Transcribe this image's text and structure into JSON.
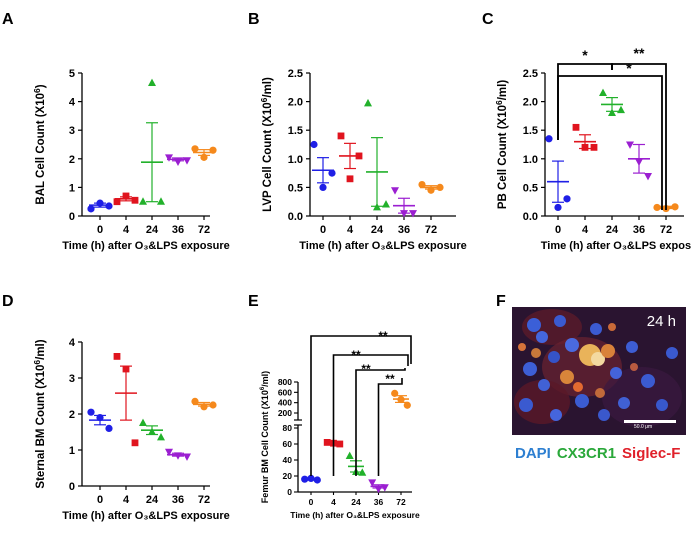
{
  "colors": {
    "0": "#1f1fe6",
    "4": "#e0141e",
    "24": "#22b12b",
    "36": "#9b1fd1",
    "72": "#f5891c",
    "dapi": "#2d7fd1",
    "cx3cr1": "#2aa83a",
    "siglecf": "#e0202a"
  },
  "categories": [
    "0",
    "4",
    "24",
    "36",
    "72"
  ],
  "panels": {
    "A": {
      "letter": "A",
      "ylabel": "BAL Cell Count (X10",
      "ylabel_sup": "6",
      "ylabel_end": ")",
      "xlabel": "Time (h) after O₃&LPS exposure",
      "ticks": [
        "0",
        "1",
        "2",
        "3",
        "4",
        "5"
      ]
    },
    "B": {
      "letter": "B",
      "ylabel": "LVP Cell Count (X10",
      "ylabel_sup": "6",
      "ylabel_end": "/ml)",
      "xlabel": "Time (h) after O₃&LPS exposure",
      "ticks": [
        "0.0",
        "0.5",
        "1.0",
        "1.5",
        "2.0",
        "2.5"
      ]
    },
    "C": {
      "letter": "C",
      "ylabel": "PB Cell Count (X10",
      "ylabel_sup": "6",
      "ylabel_end": "/ml)",
      "xlabel": "Time (h) after O₃&LPS exposure",
      "ticks": [
        "0.0",
        "0.5",
        "1.0",
        "1.5",
        "2.0",
        "2.5"
      ],
      "sig": [
        "*",
        "**",
        "*"
      ]
    },
    "D": {
      "letter": "D",
      "ylabel": "Sternal BM Count (X10",
      "ylabel_sup": "6",
      "ylabel_end": "/ml)",
      "xlabel": "Time (h) after O₃&LPS exposure",
      "ticks": [
        "0",
        "1",
        "2",
        "3",
        "4"
      ]
    },
    "E": {
      "letter": "E",
      "ylabel": "Femur BM Cell Count (X10",
      "ylabel_sup": "6",
      "ylabel_end": "/ml)",
      "xlabel": "Time (h) after O₃&LPS exposure",
      "ticks_low": [
        "0",
        "20",
        "40",
        "60",
        "80"
      ],
      "ticks_high": [
        "200",
        "400",
        "600",
        "800"
      ],
      "sig": [
        "**",
        "**",
        "**",
        "**"
      ]
    },
    "F": {
      "letter": "F",
      "time": "24 h",
      "scalebar": "50.0 μm",
      "legend": [
        "DAPI",
        "CX3CR1",
        "Siglec-F"
      ]
    }
  },
  "chart_data": [
    {
      "panel": "A",
      "type": "scatter",
      "title": "",
      "ylabel": "BAL Cell Count (X10^6)",
      "xlabel": "Time (h) after O3&LPS exposure",
      "ylim": [
        0,
        5
      ],
      "categories": [
        "0",
        "4",
        "24",
        "36",
        "72"
      ],
      "points": [
        [
          0.25,
          0.45,
          0.35
        ],
        [
          0.5,
          0.7,
          0.55
        ],
        [
          0.5,
          4.65,
          0.5
        ],
        [
          2.05,
          1.9,
          1.95
        ],
        [
          2.35,
          2.05,
          2.3
        ]
      ],
      "mean": [
        0.38,
        0.6,
        1.88,
        1.98,
        2.22
      ],
      "sem": [
        0.07,
        0.07,
        1.38,
        0.05,
        0.1
      ]
    },
    {
      "panel": "B",
      "type": "scatter",
      "title": "",
      "ylabel": "LVP Cell Count (X10^6/ml)",
      "xlabel": "Time (h) after O3&LPS exposure",
      "ylim": [
        0,
        2.5
      ],
      "categories": [
        "0",
        "4",
        "24",
        "36",
        "72"
      ],
      "points": [
        [
          1.25,
          0.5,
          0.75
        ],
        [
          1.4,
          0.65,
          1.05
        ],
        [
          1.97,
          0.15,
          0.2
        ],
        [
          0.45,
          0.05,
          0.05
        ],
        [
          0.55,
          0.45,
          0.5
        ]
      ],
      "mean": [
        0.8,
        1.05,
        0.77,
        0.18,
        0.5
      ],
      "sem": [
        0.22,
        0.22,
        0.6,
        0.13,
        0.03
      ]
    },
    {
      "panel": "C",
      "type": "scatter",
      "title": "",
      "ylabel": "PB Cell Count (X10^6/ml)",
      "xlabel": "Time (h) after O3&LPS exposure",
      "ylim": [
        0,
        2.5
      ],
      "categories": [
        "0",
        "4",
        "24",
        "36",
        "72"
      ],
      "points": [
        [
          1.35,
          0.15,
          0.3
        ],
        [
          1.55,
          1.2,
          1.2
        ],
        [
          2.15,
          1.8,
          1.85
        ],
        [
          1.25,
          0.95,
          0.7
        ],
        [
          0.15,
          0.13,
          0.16
        ]
      ],
      "mean": [
        0.6,
        1.3,
        1.95,
        1.0,
        0.15
      ],
      "sem": [
        0.36,
        0.12,
        0.12,
        0.25,
        0.02
      ],
      "annotations": [
        {
          "label": "*",
          "from": "0",
          "to": "24"
        },
        {
          "label": "**",
          "from": "24",
          "to": "72"
        },
        {
          "label": "*",
          "from": "0",
          "to": "72"
        }
      ]
    },
    {
      "panel": "D",
      "type": "scatter",
      "title": "",
      "ylabel": "Sternal BM Count (X10^6/ml)",
      "xlabel": "Time (h) after O3&LPS exposure",
      "ylim": [
        0,
        4
      ],
      "categories": [
        "0",
        "4",
        "24",
        "36",
        "72"
      ],
      "points": [
        [
          2.05,
          1.9,
          1.6
        ],
        [
          3.6,
          3.25,
          1.2
        ],
        [
          1.75,
          1.5,
          1.35
        ],
        [
          0.95,
          0.85,
          0.82
        ],
        [
          2.35,
          2.2,
          2.25
        ]
      ],
      "mean": [
        1.83,
        2.58,
        1.55,
        0.87,
        2.27
      ],
      "sem": [
        0.13,
        0.75,
        0.12,
        0.04,
        0.05
      ]
    },
    {
      "panel": "E",
      "type": "scatter",
      "title": "",
      "ylabel": "Femur BM Cell Count (X10^6/ml)",
      "xlabel": "Time (h) after O3&LPS exposure",
      "ylim": [
        0,
        800
      ],
      "axis_break": [
        80,
        100
      ],
      "categories": [
        "0",
        "4",
        "24",
        "36",
        "72"
      ],
      "points": [
        [
          16,
          17,
          15
        ],
        [
          62,
          61,
          60
        ],
        [
          45,
          25,
          24
        ],
        [
          12,
          4,
          6
        ],
        [
          580,
          460,
          350
        ]
      ],
      "mean": [
        16,
        61,
        32,
        7,
        470
      ],
      "sem": [
        1,
        1,
        7,
        2,
        65
      ],
      "annotations": [
        {
          "label": "**",
          "from": "0",
          "to": "72"
        },
        {
          "label": "**",
          "from": "4",
          "to": "72"
        },
        {
          "label": "**",
          "from": "24",
          "to": "72"
        },
        {
          "label": "**",
          "from": "36",
          "to": "72"
        }
      ]
    }
  ]
}
